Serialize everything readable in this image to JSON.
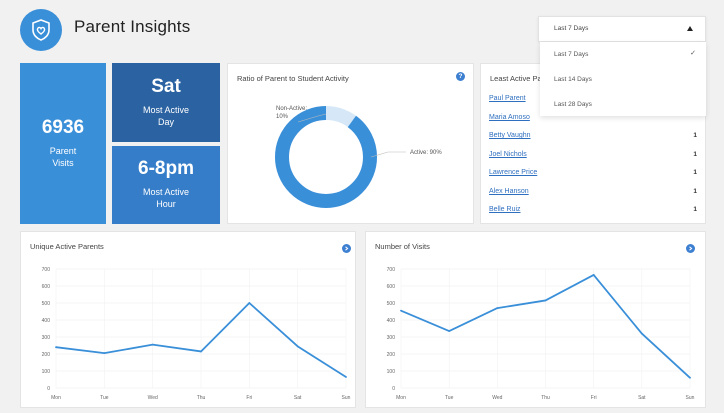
{
  "header": {
    "title": "Parent Insights",
    "logo_icon": "shield-heart-icon"
  },
  "stats": {
    "visits": {
      "value": "6936",
      "label_line1": "Parent",
      "label_line2": "Visits",
      "color": "#3a8fd9"
    },
    "active_day": {
      "value": "Sat",
      "label_line1": "Most Active",
      "label_line2": "Day",
      "color": "#2a62a2"
    },
    "active_hour": {
      "value": "6-8pm",
      "label_line1": "Most Active",
      "label_line2": "Hour",
      "color": "#357dc8"
    }
  },
  "ratio": {
    "title": "Ratio of Parent to Student Activity",
    "help_icon": "question-icon",
    "non_active_label": "Non-Active:",
    "non_active_value": "10%",
    "active_label": "Active: 90%",
    "active_percent": 90,
    "active_color": "#3a8fd9",
    "non_active_color": "#d6e8f7"
  },
  "least_active": {
    "title": "Least Active Pa",
    "rows": [
      {
        "name": "Paul Parent",
        "count": ""
      },
      {
        "name": "Maria Amoso",
        "count": ""
      },
      {
        "name": "Betty Vaughn",
        "count": "1"
      },
      {
        "name": "Joel Nichols",
        "count": "1"
      },
      {
        "name": "Lawrence Price",
        "count": "1"
      },
      {
        "name": "Alex Hanson",
        "count": "1"
      },
      {
        "name": "Belle Ruiz",
        "count": "1"
      }
    ]
  },
  "dropdown": {
    "selected": "Last 7 Days",
    "options": [
      "Last 7 Days",
      "Last 14 Days",
      "Last 28 Days"
    ],
    "checked_index": 0
  },
  "chart_data": [
    {
      "type": "line",
      "title": "Unique Active Parents",
      "categories": [
        "Mon",
        "Tue",
        "Wed",
        "Thu",
        "Fri",
        "Sat",
        "Sun"
      ],
      "values": [
        240,
        205,
        255,
        215,
        500,
        245,
        65
      ],
      "ylim": [
        0,
        700
      ],
      "yticks": [
        0,
        100,
        200,
        300,
        400,
        500,
        600,
        700
      ],
      "grid": true,
      "color": "#3a8fd9"
    },
    {
      "type": "line",
      "title": "Number of Visits",
      "categories": [
        "Mon",
        "Tue",
        "Wed",
        "Thu",
        "Fri",
        "Sat",
        "Sun"
      ],
      "values": [
        455,
        335,
        470,
        515,
        665,
        320,
        60
      ],
      "ylim": [
        0,
        700
      ],
      "yticks": [
        0,
        100,
        200,
        300,
        400,
        500,
        600,
        700
      ],
      "grid": true,
      "color": "#3a8fd9"
    }
  ]
}
